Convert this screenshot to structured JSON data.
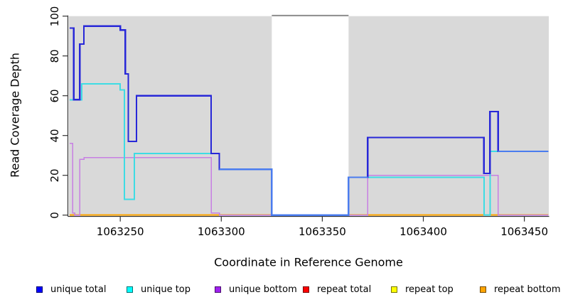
{
  "chart_data": {
    "type": "line",
    "subtype": "step-coverage-plot",
    "title": "",
    "xlabel": "Coordinate in Reference Genome",
    "ylabel": "Read Coverage Depth",
    "plot_background": "#d9d9d9",
    "figure_background": "#ffffff",
    "axis_color": "#333333",
    "x_axis": {
      "min": 1063224.6,
      "max": 1063462.1,
      "ticks": [
        1063250,
        1063300,
        1063350,
        1063400,
        1063450
      ],
      "tick_labels": [
        "1063250",
        "1063300",
        "1063350",
        "1063400",
        "1063450"
      ]
    },
    "y_axis": {
      "min": 0,
      "max": 100,
      "ticks": [
        0,
        20,
        40,
        60,
        80,
        100
      ],
      "tick_labels": [
        "0",
        "20",
        "40",
        "60",
        "80",
        "100"
      ]
    },
    "gap_region": {
      "x_start": 1063325,
      "x_end": 1063363,
      "fill": "#ffffff",
      "top_line_color": "#8c8c8c"
    },
    "series": [
      {
        "id": "repeat-total",
        "label": "repeat total",
        "line_color": "#ff2020",
        "swatch_color": "#FF0000",
        "width": 1.5,
        "points": [
          [
            1063225,
            0
          ],
          [
            1063462,
            0
          ]
        ]
      },
      {
        "id": "repeat-top",
        "label": "repeat top",
        "line_color": "#ffff00",
        "swatch_color": "#FFFF00",
        "width": 1.5,
        "points": [
          [
            1063225,
            0
          ],
          [
            1063462,
            0
          ]
        ]
      },
      {
        "id": "repeat-bottom",
        "label": "repeat bottom",
        "line_color": "#ffa500",
        "swatch_color": "#FFA500",
        "width": 2,
        "points": [
          [
            1063225,
            0
          ],
          [
            1063462,
            0
          ]
        ]
      },
      {
        "id": "unique-bottom",
        "label": "unique bottom",
        "line_color": "#c77fe3",
        "swatch_color": "#A020F0",
        "width": 1.5,
        "points": [
          [
            1063225,
            36
          ],
          [
            1063226.5,
            36
          ],
          [
            1063226.5,
            1
          ],
          [
            1063227.5,
            1
          ],
          [
            1063227.5,
            0
          ],
          [
            1063230,
            0
          ],
          [
            1063230,
            28
          ],
          [
            1063232,
            28
          ],
          [
            1063232,
            29
          ],
          [
            1063295,
            29
          ],
          [
            1063295,
            1
          ],
          [
            1063299,
            1
          ],
          [
            1063299,
            0
          ],
          [
            1063372.5,
            0
          ],
          [
            1063372.5,
            20
          ],
          [
            1063437,
            20
          ],
          [
            1063437,
            0
          ],
          [
            1063462,
            0
          ]
        ]
      },
      {
        "id": "unique-top",
        "label": "unique top",
        "line_color": "#3edce4",
        "swatch_color": "#00FFFF",
        "width": 2,
        "points": [
          [
            1063225,
            58
          ],
          [
            1063231,
            58
          ],
          [
            1063231,
            66
          ],
          [
            1063250,
            66
          ],
          [
            1063250,
            63
          ],
          [
            1063252,
            63
          ],
          [
            1063252,
            8
          ],
          [
            1063257,
            8
          ],
          [
            1063257,
            31
          ],
          [
            1063299,
            31
          ],
          [
            1063299,
            23
          ],
          [
            1063325,
            23
          ],
          [
            1063325,
            0
          ],
          [
            1063363,
            0
          ],
          [
            1063363,
            19
          ],
          [
            1063430,
            19
          ],
          [
            1063430,
            0
          ],
          [
            1063433,
            0
          ],
          [
            1063433,
            32
          ],
          [
            1063462,
            32
          ]
        ]
      },
      {
        "id": "unique-total",
        "label": "unique total",
        "line_color": "#2828d8",
        "swatch_color": "#0000FF",
        "width": 2.2,
        "points": [
          [
            1063225,
            94
          ],
          [
            1063227,
            94
          ],
          [
            1063227,
            58
          ],
          [
            1063230,
            58
          ],
          [
            1063230,
            86
          ],
          [
            1063232,
            86
          ],
          [
            1063232,
            95
          ],
          [
            1063250,
            95
          ],
          [
            1063250,
            93
          ],
          [
            1063252.5,
            93
          ],
          [
            1063252.5,
            71
          ],
          [
            1063254,
            71
          ],
          [
            1063254,
            37
          ],
          [
            1063258,
            37
          ],
          [
            1063258,
            60
          ],
          [
            1063295,
            60
          ],
          [
            1063295,
            31
          ],
          [
            1063299,
            31
          ],
          [
            1063299,
            23
          ],
          [
            1063325,
            23
          ],
          [
            1063325,
            0
          ],
          [
            1063363,
            0
          ],
          [
            1063363,
            19
          ],
          [
            1063372.5,
            19
          ],
          [
            1063372.5,
            39
          ],
          [
            1063430,
            39
          ],
          [
            1063430,
            21
          ],
          [
            1063433,
            21
          ],
          [
            1063433,
            52
          ],
          [
            1063437,
            52
          ],
          [
            1063437,
            32
          ],
          [
            1063462,
            32
          ]
        ]
      }
    ],
    "overlap_highlights": [
      {
        "color": "#4a7cef",
        "width": 2.2,
        "points": [
          [
            1063299,
            23
          ],
          [
            1063325,
            23
          ],
          [
            1063325,
            0
          ],
          [
            1063363,
            0
          ],
          [
            1063363,
            19
          ],
          [
            1063372.5,
            19
          ]
        ]
      },
      {
        "color": "#4a7cef",
        "width": 2.2,
        "points": [
          [
            1063437,
            32
          ],
          [
            1063462,
            32
          ]
        ]
      }
    ],
    "legend": {
      "items": [
        {
          "label": "unique total",
          "color": "#0000FF"
        },
        {
          "label": "unique top",
          "color": "#00FFFF"
        },
        {
          "label": "unique bottom",
          "color": "#A020F0"
        },
        {
          "label": "repeat total",
          "color": "#FF0000"
        },
        {
          "label": "repeat top",
          "color": "#FFFF00"
        },
        {
          "label": "repeat bottom",
          "color": "#FFA500"
        }
      ]
    }
  }
}
